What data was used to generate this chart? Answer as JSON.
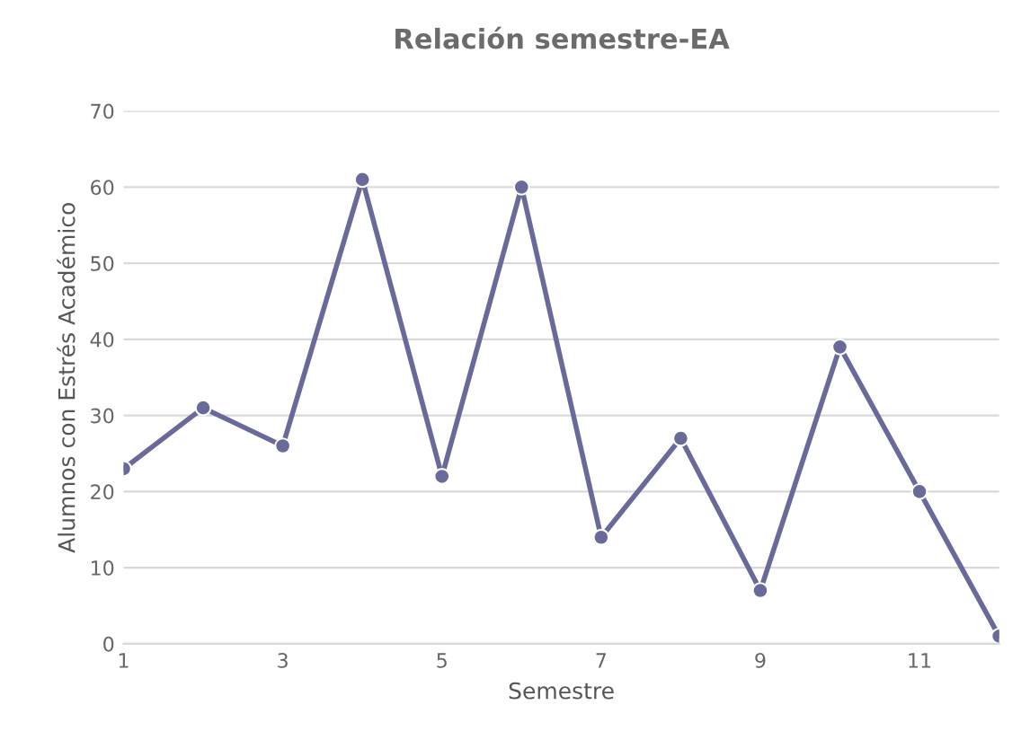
{
  "chart_data": {
    "type": "line",
    "title": "Relación semestre-EA",
    "xlabel": "Semestre",
    "ylabel": "Alumnos con Estrés Académico",
    "x": [
      1,
      2,
      3,
      4,
      5,
      6,
      7,
      8,
      9,
      10,
      11,
      12
    ],
    "series": [
      {
        "color": "#6a6a9a",
        "values": [
          23,
          31,
          26,
          61,
          22,
          60,
          14,
          27,
          7,
          39,
          20,
          1
        ]
      }
    ],
    "xlim": [
      1,
      12
    ],
    "xticks": [
      1,
      3,
      5,
      7,
      9,
      11
    ],
    "ylim": [
      0,
      70
    ],
    "yticks": [
      0,
      10,
      20,
      30,
      40,
      50,
      60,
      70
    ],
    "grid": "y",
    "marker": "circle",
    "line_style": "solid"
  }
}
